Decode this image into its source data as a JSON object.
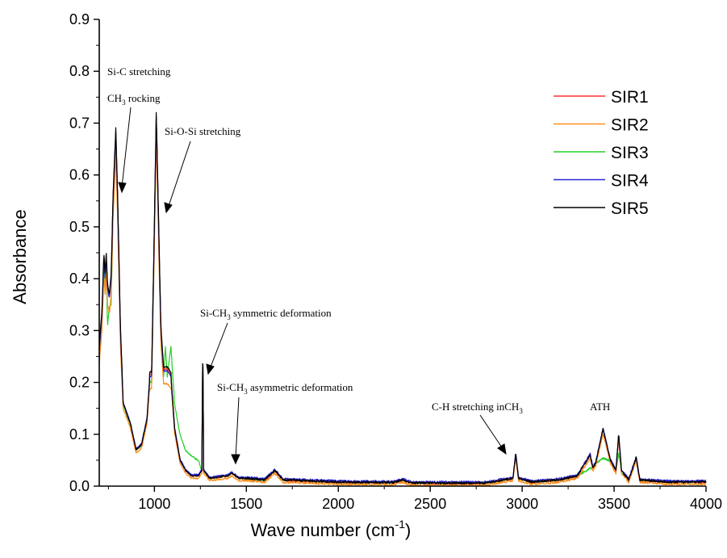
{
  "chart_data": {
    "type": "line",
    "xlabel": "Wave number (cm",
    "xlabel_sup": "-1",
    "xlabel_end": ")",
    "ylabel": "Absorbance",
    "xlim": [
      700,
      4000
    ],
    "ylim": [
      0,
      0.9
    ],
    "x_ticks": [
      1000,
      1500,
      2000,
      2500,
      3000,
      3500,
      4000
    ],
    "y_ticks": [
      0.0,
      0.1,
      0.2,
      0.3,
      0.4,
      0.5,
      0.6,
      0.7,
      0.8,
      0.9
    ],
    "legend_position": "top-right",
    "series": [
      {
        "name": "SIR1",
        "color": "#ff3030",
        "scale": 1.0,
        "offset": 0.0,
        "peak_shift": 0.005
      },
      {
        "name": "SIR2",
        "color": "#ff8c1a",
        "scale": 0.96,
        "offset": -0.004,
        "peak_shift": -0.01
      },
      {
        "name": "SIR3",
        "color": "#22d022",
        "scale": 0.98,
        "offset": 0.0,
        "peak_shift": -0.005
      },
      {
        "name": "SIR4",
        "color": "#2828d8",
        "scale": 1.0,
        "offset": 0.002,
        "peak_shift": 0.0
      },
      {
        "name": "SIR5",
        "color": "#000000",
        "scale": 1.0,
        "offset": 0.0,
        "peak_shift": 0.01
      }
    ],
    "baseline_points": [
      [
        700,
        0.26
      ],
      [
        715,
        0.33
      ],
      [
        725,
        0.44
      ],
      [
        732,
        0.4
      ],
      [
        738,
        0.44
      ],
      [
        745,
        0.38
      ],
      [
        755,
        0.36
      ],
      [
        765,
        0.4
      ],
      [
        775,
        0.55
      ],
      [
        790,
        0.68
      ],
      [
        800,
        0.55
      ],
      [
        815,
        0.3
      ],
      [
        830,
        0.16
      ],
      [
        850,
        0.14
      ],
      [
        870,
        0.12
      ],
      [
        900,
        0.07
      ],
      [
        930,
        0.08
      ],
      [
        960,
        0.13
      ],
      [
        975,
        0.21
      ],
      [
        985,
        0.21
      ],
      [
        1000,
        0.5
      ],
      [
        1010,
        0.71
      ],
      [
        1020,
        0.55
      ],
      [
        1035,
        0.3
      ],
      [
        1050,
        0.22
      ],
      [
        1070,
        0.22
      ],
      [
        1090,
        0.21
      ],
      [
        1110,
        0.11
      ],
      [
        1140,
        0.05
      ],
      [
        1170,
        0.03
      ],
      [
        1200,
        0.02
      ],
      [
        1240,
        0.02
      ],
      [
        1258,
        0.03
      ],
      [
        1263,
        0.275
      ],
      [
        1268,
        0.03
      ],
      [
        1300,
        0.015
      ],
      [
        1400,
        0.02
      ],
      [
        1420,
        0.025
      ],
      [
        1460,
        0.015
      ],
      [
        1500,
        0.015
      ],
      [
        1600,
        0.012
      ],
      [
        1655,
        0.03
      ],
      [
        1700,
        0.012
      ],
      [
        2000,
        0.008
      ],
      [
        2300,
        0.007
      ],
      [
        2350,
        0.012
      ],
      [
        2400,
        0.006
      ],
      [
        2800,
        0.006
      ],
      [
        2950,
        0.015
      ],
      [
        2965,
        0.063
      ],
      [
        2980,
        0.015
      ],
      [
        3050,
        0.008
      ],
      [
        3200,
        0.012
      ],
      [
        3300,
        0.02
      ],
      [
        3370,
        0.06
      ],
      [
        3385,
        0.035
      ],
      [
        3400,
        0.045
      ],
      [
        3440,
        0.11
      ],
      [
        3480,
        0.05
      ],
      [
        3510,
        0.03
      ],
      [
        3525,
        0.1
      ],
      [
        3540,
        0.03
      ],
      [
        3580,
        0.012
      ],
      [
        3620,
        0.055
      ],
      [
        3640,
        0.012
      ],
      [
        3800,
        0.008
      ],
      [
        4000,
        0.008
      ]
    ],
    "sir3_overrides": [
      [
        700,
        0.25
      ],
      [
        745,
        0.32
      ],
      [
        765,
        0.36
      ],
      [
        1060,
        0.28
      ],
      [
        1090,
        0.28
      ],
      [
        1110,
        0.16
      ],
      [
        1140,
        0.1
      ],
      [
        1170,
        0.07
      ],
      [
        1200,
        0.06
      ],
      [
        1240,
        0.05
      ],
      [
        3370,
        0.035
      ],
      [
        3440,
        0.055
      ],
      [
        3525,
        0.065
      ]
    ],
    "annotations": [
      {
        "id": "si-c",
        "text": "Si-C stretching"
      },
      {
        "id": "ch3-rock",
        "text": "CH",
        "sub": "3",
        "rest": " rocking"
      },
      {
        "id": "si-o-si",
        "text": "Si-O-Si stretching"
      },
      {
        "id": "si-ch3-sym",
        "text": "Si-CH",
        "sub": "3",
        "rest": " symmetric deformation"
      },
      {
        "id": "si-ch3-asym",
        "text": "Si-CH",
        "sub": "3",
        "rest": " asymmetric deformation"
      },
      {
        "id": "ch-stretch",
        "text": "C-H stretching inCH",
        "sub": "3",
        "rest": ""
      },
      {
        "id": "ath",
        "text": "ATH"
      }
    ]
  }
}
